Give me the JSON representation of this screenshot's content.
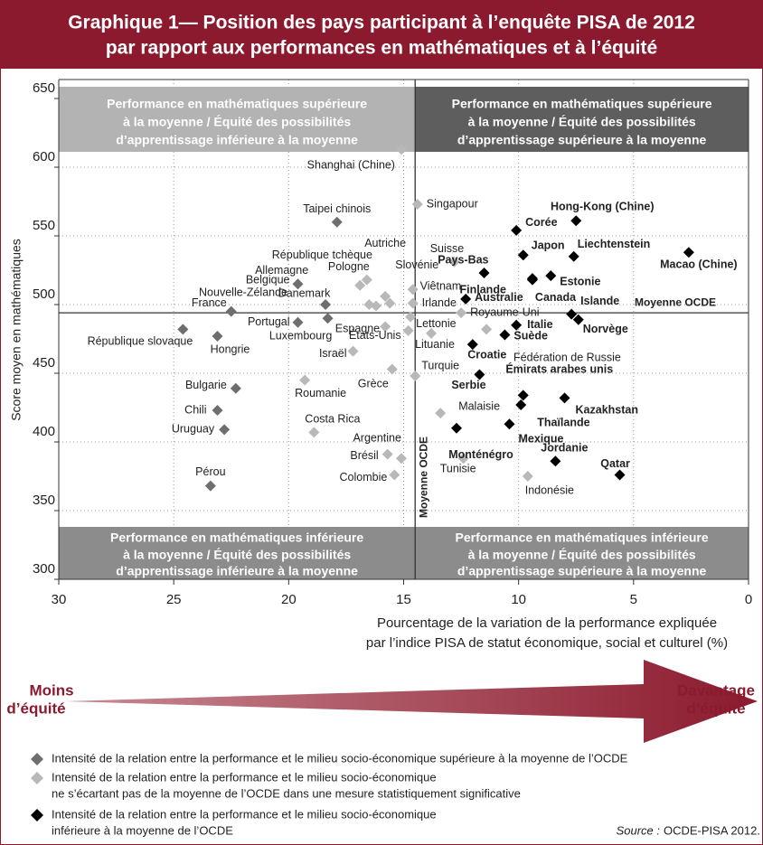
{
  "chart_data": {
    "type": "scatter",
    "title": [
      "Graphique 1— Position des pays participant à l’enquête PISA de 2012",
      "par rapport aux performances en mathématiques et à l’équité"
    ],
    "ylabel": "Score moyen en mathématiques",
    "xlabel": [
      "Pourcentage de la variation de la performance expliquée",
      "par l’indice PISA de statut économique, social et culturel (%)"
    ],
    "xlim": [
      30,
      0
    ],
    "ylim": [
      300,
      650
    ],
    "xticks": [
      30,
      25,
      20,
      15,
      10,
      5,
      0
    ],
    "yticks": [
      300,
      350,
      400,
      450,
      500,
      550,
      600,
      650
    ],
    "grid": true,
    "reference": {
      "x": 14.5,
      "y": 494,
      "x_label": "Moyenne OCDE",
      "y_label": "Moyenne OCDE"
    },
    "quadrants": [
      {
        "lines": [
          "Performance en mathématiques supérieure",
          "à la moyenne / Équité des possibilités",
          "d’apprentissage inférieure à la moyenne"
        ],
        "color": "#b3b3b3"
      },
      {
        "lines": [
          "Performance en mathématiques supérieure",
          "à la moyenne / Équité des possibilités",
          "d’apprentissage supérieure à la moyenne"
        ],
        "color": "#5e5e5e"
      },
      {
        "lines": [
          "Performance en mathématiques inférieure",
          "à la moyenne / Équité des possibilités",
          "d’apprentissage inférieure à la moyenne"
        ],
        "color": "#8c8c8c"
      },
      {
        "lines": [
          "Performance en mathématiques inférieure",
          "à la moyenne / Équité des possibilités",
          "d’apprentissage supérieure à la moyenne"
        ],
        "color": "#8c8c8c"
      }
    ],
    "series": [
      {
        "name": [
          "Intensité de la relation entre la performance et le milieu socio-économique supérieure à la moyenne de l’OCDE"
        ],
        "color": "#6e6e6e",
        "labels": [
          "Taipei chinois",
          "Belgique",
          "Nouvelle-Zélande",
          "France",
          "Luxembourg",
          "Portugal",
          "République slovaque",
          "Hongrie",
          "Bulgarie",
          "Chili",
          "Uruguay",
          "Pérou"
        ],
        "x": [
          17.9,
          19.6,
          18.4,
          22.5,
          18.3,
          19.6,
          24.6,
          23.1,
          22.3,
          23.1,
          22.8,
          23.4
        ],
        "values": [
          560,
          515,
          500,
          495,
          490,
          487,
          482,
          477,
          439,
          423,
          409,
          368
        ]
      },
      {
        "name": [
          "Intensité de la relation entre la performance et le milieu socio-économique",
          "ne s’écartant pas de la moyenne de l’OCDE dans une mesure statistiquement significative"
        ],
        "color": "#b8b8b8",
        "labels": [
          "Shanghai (Chine)",
          "Singapour",
          "Suisse",
          "Pologne",
          "Allemagne",
          "Viêtnam",
          "Autriche",
          "Irlande",
          "Slovénie",
          "Danemark",
          "République tchèque",
          "Royaume-Uni",
          "Lettonie",
          "Espagne",
          "Fédération de Russie",
          "États-Unis",
          "Lituanie",
          "Israël",
          "Grèce",
          "Turquie",
          "Roumanie",
          "Malaisie",
          "Costa Rica",
          "Brésil",
          "Argentine",
          "Tunisie",
          "Colombie",
          "Indonésie"
        ],
        "x": [
          15.1,
          14.4,
          12.8,
          16.6,
          16.9,
          14.6,
          15.8,
          14.6,
          15.6,
          16.5,
          16.2,
          12.5,
          14.7,
          15.8,
          11.4,
          14.8,
          13.8,
          17.2,
          15.5,
          14.5,
          19.3,
          13.4,
          18.9,
          15.7,
          15.1,
          12.4,
          15.4,
          9.6
        ],
        "values": [
          613,
          573,
          531,
          518,
          514,
          511,
          506,
          501,
          501,
          500,
          499,
          494,
          491,
          484,
          482,
          481,
          479,
          466,
          453,
          448,
          445,
          421,
          407,
          391,
          388,
          388,
          376,
          375
        ]
      },
      {
        "name": [
          "Intensité de la relation entre la performance et le milieu socio-économique",
          "inférieure à la moyenne de l’OCDE"
        ],
        "color": "#000000",
        "labels": [
          "Hong-Kong (Chine)",
          "Corée",
          "Macao (Chine)",
          "Japon",
          "Liechtenstein",
          "Pays-Bas",
          "Estonie",
          "Finlande",
          "Canada",
          "Australie",
          "Islande",
          "Norvège",
          "Italie",
          "Suède",
          "Croatie",
          "Serbie",
          "Émirats arabes unis",
          "Kazakhstan",
          "Thaïlande",
          "Mexique",
          "Monténégro",
          "Jordanie",
          "Qatar"
        ],
        "x": [
          7.5,
          10.1,
          2.6,
          9.8,
          7.6,
          11.5,
          8.6,
          9.4,
          9.4,
          12.3,
          7.7,
          7.4,
          10.1,
          10.6,
          12.0,
          11.7,
          9.8,
          8.0,
          9.9,
          10.4,
          12.7,
          8.4,
          5.6
        ],
        "values": [
          561,
          554,
          538,
          536,
          535,
          523,
          521,
          519,
          518,
          504,
          493,
          489,
          485,
          478,
          471,
          449,
          434,
          432,
          427,
          413,
          410,
          386,
          376
        ]
      }
    ],
    "arrow": {
      "left": [
        "Moins",
        "d’équité"
      ],
      "right": [
        "Davantage",
        "d’équité"
      ],
      "color": "#8b1a2e"
    },
    "source": {
      "label": "Source :",
      "text": "OCDE-PISA 2012."
    }
  }
}
